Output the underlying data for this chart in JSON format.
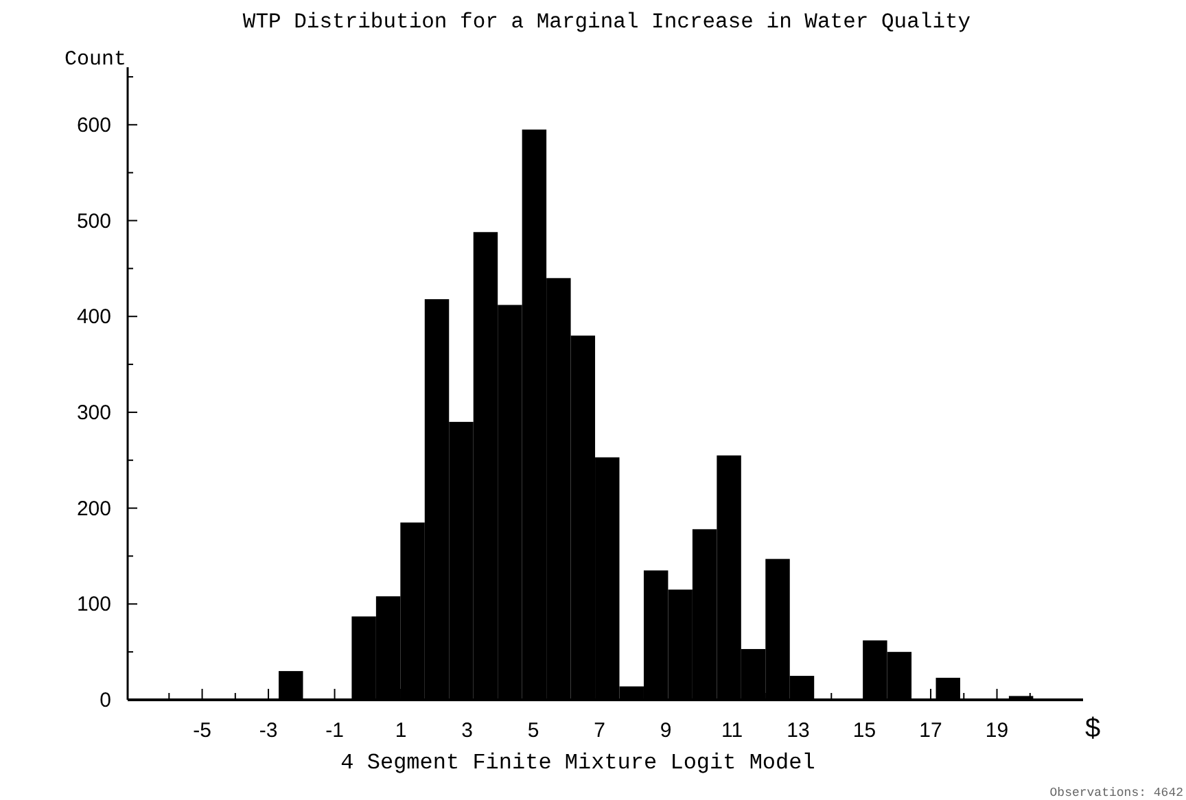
{
  "chart_data": {
    "type": "histogram",
    "title": "WTP Distribution for a Marginal Increase in Water Quality",
    "xlabel": "4 Segment Finite Mixture Logit Model",
    "ylabel": "Count",
    "annotations": [
      "$",
      "Observations: 4642"
    ],
    "bins": [
      -7.1,
      -6.365,
      -5.63,
      -4.895,
      -4.16,
      -3.425,
      -2.69,
      -1.955,
      -1.22,
      -0.485,
      0.25,
      0.985,
      1.72,
      2.455,
      3.19,
      3.925,
      4.66,
      5.395,
      6.13,
      6.865,
      7.6,
      8.335,
      9.07,
      9.805,
      10.54,
      11.275,
      12.01,
      12.745,
      13.48,
      14.215,
      14.95,
      15.685,
      16.42,
      17.155,
      17.89,
      18.625,
      19.36,
      20.095,
      20.83,
      21.565
    ],
    "values": [
      0,
      0,
      0,
      0,
      0,
      0,
      30,
      0,
      0,
      87,
      108,
      185,
      418,
      290,
      488,
      412,
      595,
      440,
      380,
      253,
      14,
      135,
      115,
      178,
      255,
      53,
      147,
      25,
      0,
      0,
      62,
      50,
      0,
      23,
      0,
      0,
      4,
      0,
      0
    ],
    "color": "#000000",
    "xlim": [
      -7.25,
      21.6
    ],
    "ylim": [
      0,
      660
    ],
    "xticks": [
      {
        "value": -6,
        "label": null
      },
      -5,
      {
        "value": -4,
        "label": null
      },
      -3,
      {
        "value": -2,
        "label": null
      },
      -1,
      {
        "value": 0,
        "label": null
      },
      1,
      {
        "value": 2,
        "label": null
      },
      3,
      {
        "value": 4,
        "label": null
      },
      5,
      {
        "value": 6,
        "label": null
      },
      7,
      {
        "value": 8,
        "label": null
      },
      9,
      {
        "value": 10,
        "label": null
      },
      11,
      {
        "value": 12,
        "label": null
      },
      13,
      {
        "value": 14,
        "label": null
      },
      15,
      {
        "value": 16,
        "label": null
      },
      17,
      {
        "value": 18,
        "label": null
      },
      19,
      {
        "value": 20,
        "label": null
      }
    ],
    "yticks": [
      0,
      {
        "value": 50,
        "label": null
      },
      100,
      {
        "value": 150,
        "label": null
      },
      200,
      {
        "value": 250,
        "label": null
      },
      300,
      {
        "value": 350,
        "label": null
      },
      400,
      {
        "value": 450,
        "label": null
      },
      500,
      {
        "value": 550,
        "label": null
      },
      600,
      {
        "value": 650,
        "label": null
      }
    ],
    "grid": false
  }
}
